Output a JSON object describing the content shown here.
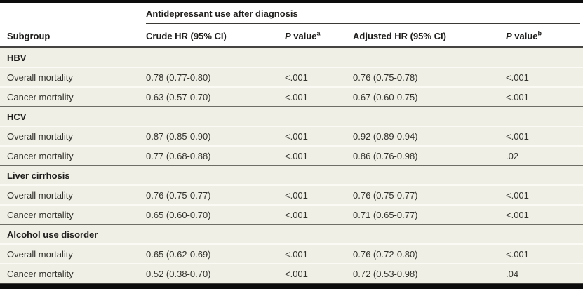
{
  "table": {
    "spanner": "Antidepressant use after diagnosis",
    "columns": {
      "subgroup": "Subgroup",
      "crude_hr": "Crude HR (95% CI)",
      "adjusted_hr": "Adjusted HR (95% CI)"
    },
    "p_header": {
      "italic": "P",
      "rest": " value",
      "sup_crude": "a",
      "sup_adjusted": "b"
    },
    "sections": [
      {
        "label": "HBV",
        "rows": [
          {
            "subgroup": "Overall mortality",
            "crude_hr": "0.78 (0.77-0.80)",
            "p_crude": "<.001",
            "adjusted_hr": "0.76 (0.75-0.78)",
            "p_adjusted": "<.001"
          },
          {
            "subgroup": "Cancer mortality",
            "crude_hr": "0.63 (0.57-0.70)",
            "p_crude": "<.001",
            "adjusted_hr": "0.67 (0.60-0.75)",
            "p_adjusted": "<.001"
          }
        ]
      },
      {
        "label": "HCV",
        "rows": [
          {
            "subgroup": "Overall mortality",
            "crude_hr": "0.87 (0.85-0.90)",
            "p_crude": "<.001",
            "adjusted_hr": "0.92 (0.89-0.94)",
            "p_adjusted": "<.001"
          },
          {
            "subgroup": "Cancer mortality",
            "crude_hr": "0.77 (0.68-0.88)",
            "p_crude": "<.001",
            "adjusted_hr": "0.86 (0.76-0.98)",
            "p_adjusted": ".02"
          }
        ]
      },
      {
        "label": "Liver cirrhosis",
        "rows": [
          {
            "subgroup": "Overall mortality",
            "crude_hr": "0.76 (0.75-0.77)",
            "p_crude": "<.001",
            "adjusted_hr": "0.76 (0.75-0.77)",
            "p_adjusted": "<.001"
          },
          {
            "subgroup": "Cancer mortality",
            "crude_hr": "0.65 (0.60-0.70)",
            "p_crude": "<.001",
            "adjusted_hr": "0.71 (0.65-0.77)",
            "p_adjusted": "<.001"
          }
        ]
      },
      {
        "label": "Alcohol use disorder",
        "rows": [
          {
            "subgroup": "Overall mortality",
            "crude_hr": "0.65 (0.62-0.69)",
            "p_crude": "<.001",
            "adjusted_hr": "0.76 (0.72-0.80)",
            "p_adjusted": "<.001"
          },
          {
            "subgroup": "Cancer mortality",
            "crude_hr": "0.52 (0.38-0.70)",
            "p_crude": "<.001",
            "adjusted_hr": "0.72 (0.53-0.98)",
            "p_adjusted": ".04"
          }
        ]
      }
    ],
    "colors": {
      "row_background": "#f0efe6",
      "row_separator": "#fbfaf5",
      "section_rule": "#6e6d66",
      "header_rule": "#454440",
      "frame": "#0c0c0c",
      "text": "#32312c",
      "bold_text": "#1d1c1a"
    }
  }
}
